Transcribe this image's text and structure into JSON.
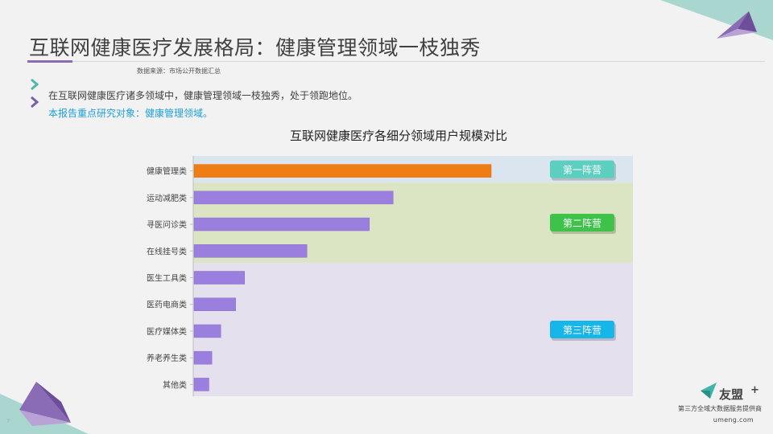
{
  "slide": {
    "title": "互联网健康医疗发展格局：健康管理领域一枝独秀",
    "source": "数据来源：市场公开数据汇总",
    "bullets": [
      "在互联网健康医疗诸多领域中，健康管理领域一枝独秀，处于领跑地位。",
      "本报告重点研究对象：健康管理领域。"
    ],
    "page_number": "7"
  },
  "footer": {
    "logo_text": "友盟",
    "logo_plus": "+",
    "provider": "第三方全域大数据服务提供商",
    "domain": "umeng.com"
  },
  "colors": {
    "accent_purple": "#8e6bb0",
    "highlight_blue": "#1fa0d8",
    "bar_orange": "#f07c14",
    "bar_purple": "#9b7fde",
    "band_blue": "#dbe5ef",
    "band_green": "#dbe5c3",
    "band_purple": "#e5e0ee",
    "badge_teal": "#5ccfc0",
    "badge_green": "#3fc24a",
    "badge_blue": "#16b6ea"
  },
  "chart_data": {
    "type": "bar",
    "orientation": "horizontal",
    "title": "互联网健康医疗各细分领域用户规模对比",
    "xlabel": "",
    "ylabel": "",
    "categories": [
      "健康管理类",
      "运动减肥类",
      "寻医问诊类",
      "在线挂号类",
      "医生工具类",
      "医药电商类",
      "医疗媒体类",
      "养老养生类",
      "其他类"
    ],
    "values": [
      100,
      67,
      59,
      38,
      17,
      14,
      9,
      6,
      5
    ],
    "xlim": [
      0,
      100
    ],
    "axis_values_shown": false,
    "grid": false,
    "highlighted_category": "健康管理类",
    "tiers": [
      {
        "label": "第一阵营",
        "categories": [
          "健康管理类"
        ],
        "color": "#dbe5ef",
        "badge_color": "#5ccfc0"
      },
      {
        "label": "第二阵营",
        "categories": [
          "运动减肥类",
          "寻医问诊类",
          "在线挂号类"
        ],
        "color": "#dbe5c3",
        "badge_color": "#3fc24a"
      },
      {
        "label": "第三阵营",
        "categories": [
          "医生工具类",
          "医药电商类",
          "医疗媒体类",
          "养老养生类",
          "其他类"
        ],
        "color": "#e5e0ee",
        "badge_color": "#16b6ea"
      }
    ]
  }
}
